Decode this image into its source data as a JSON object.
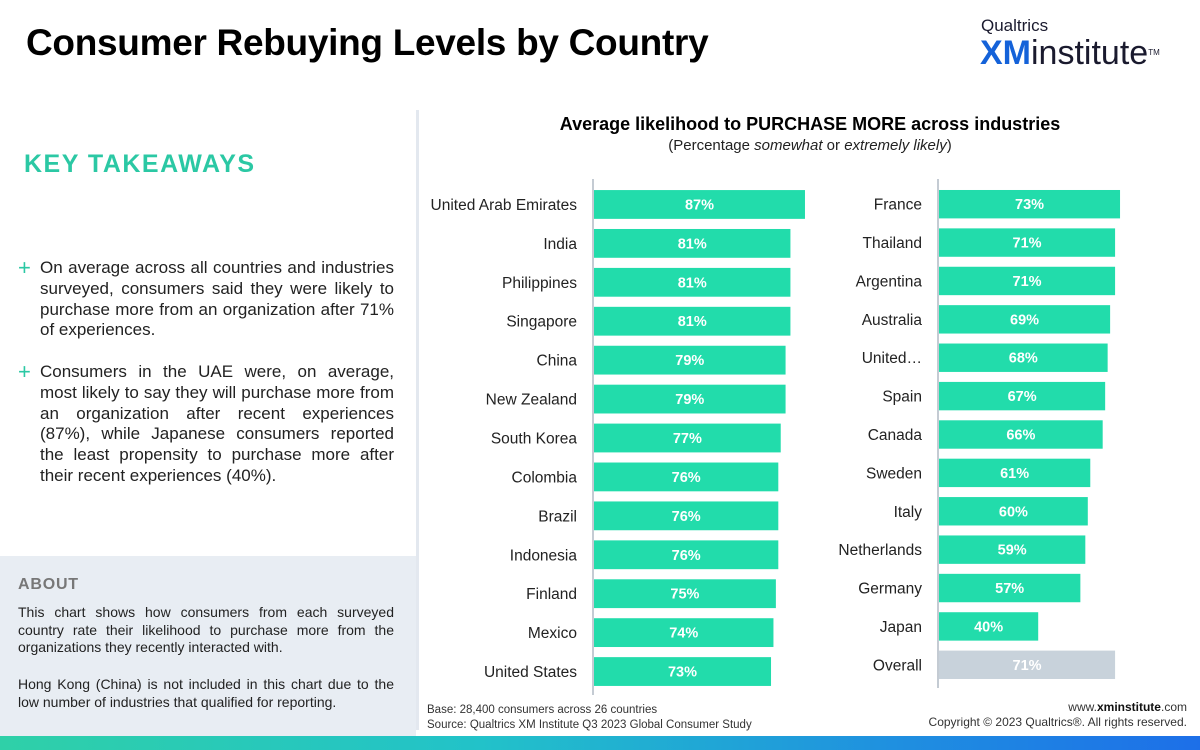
{
  "header": {
    "title": "Consumer Rebuying Levels by Country",
    "logo_top": "Qualtrics",
    "logo_xm": "XM",
    "logo_institute": "institute",
    "logo_tm": "TM"
  },
  "takeaways": {
    "heading": "KEY TAKEAWAYS",
    "items": [
      "On average across all countries and industries surveyed, consumers said they were likely to purchase more from an organization after 71% of experiences.",
      "Consumers in the UAE were, on average, most likely to say they will purchase more from an organization after recent experiences (87%), while Japanese consumers reported the least propensity to purchase more after their recent experiences (40%)."
    ]
  },
  "about": {
    "heading": "ABOUT",
    "paragraphs": [
      "This chart shows how consumers from each surveyed country rate their likelihood to purchase more from the organizations they recently interacted with.",
      "Hong Kong (China) is not included in this chart due to the low number of industries that qualified for reporting."
    ]
  },
  "chart_data": {
    "type": "bar",
    "orientation": "horizontal",
    "title": "Average likelihood to PURCHASE MORE across industries",
    "subtitle_parts": [
      "(Percentage ",
      "somewhat",
      " or ",
      "extremely likely",
      ")"
    ],
    "value_suffix": "%",
    "panels": [
      {
        "categories": [
          "United Arab Emirates",
          "India",
          "Philippines",
          "Singapore",
          "China",
          "New Zealand",
          "South Korea",
          "Colombia",
          "Brazil",
          "Indonesia",
          "Finland",
          "Mexico",
          "United States"
        ],
        "values": [
          87,
          81,
          81,
          81,
          79,
          79,
          77,
          76,
          76,
          76,
          75,
          74,
          73
        ]
      },
      {
        "categories": [
          "France",
          "Thailand",
          "Argentina",
          "Australia",
          "United…",
          "Spain",
          "Canada",
          "Sweden",
          "Italy",
          "Netherlands",
          "Germany",
          "Japan",
          "Overall"
        ],
        "values": [
          73,
          71,
          71,
          69,
          68,
          67,
          66,
          61,
          60,
          59,
          57,
          40,
          71
        ]
      }
    ],
    "highlight_category": "Overall",
    "colors": {
      "bar": "#22dcab",
      "overall": "#c8d2db",
      "axis": "#c4cbd3"
    }
  },
  "footer": {
    "base": "Base: 28,400 consumers across 26 countries",
    "source": "Source: Qualtrics XM Institute Q3 2023 Global Consumer Study",
    "site_prefix": "www.",
    "site_domain": "xminstitute",
    "site_suffix": ".com",
    "copyright": "Copyright © 2023 Qualtrics®. All rights reserved."
  }
}
